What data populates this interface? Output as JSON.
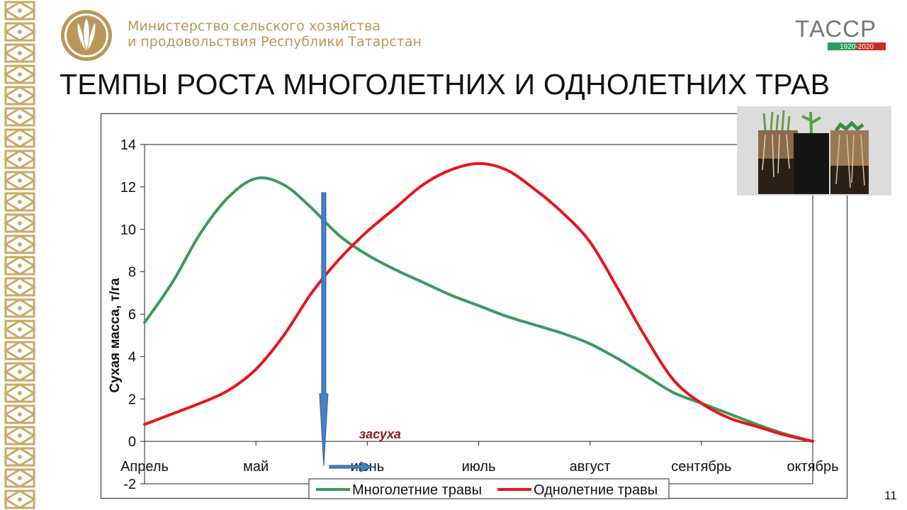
{
  "header": {
    "ministry_line1": "Министерство сельского хозяйства",
    "ministry_line2": "и продовольствия Республики Татарстан",
    "brand_text": "ТАССР",
    "brand_years": "1920-2020"
  },
  "title": "ТЕМПЫ РОСТА МНОГОЛЕТНИХ И ОДНОЛЕТНИХ ТРАВ",
  "slide_number": "11",
  "colors": {
    "perennial": "#3a9a5c",
    "annual": "#e8141b",
    "arrow": "#4a7fc4",
    "annotation": "#8b1a1a",
    "brand_gold": "#b9975b"
  },
  "chart_data": {
    "type": "line",
    "title": "",
    "xlabel": "",
    "ylabel": "Сухая масса, т/га",
    "ylim": [
      -2,
      14
    ],
    "yticks": [
      -2,
      0,
      2,
      4,
      6,
      8,
      10,
      12,
      14
    ],
    "categories": [
      "Апрель",
      "май",
      "июнь",
      "июль",
      "август",
      "сентябрь",
      "октябрь"
    ],
    "xlim": [
      0,
      6
    ],
    "grid": false,
    "legend_position": "bottom",
    "series": [
      {
        "name": "Многолетние травы",
        "x": [
          0,
          0.25,
          0.5,
          0.75,
          1.0,
          1.25,
          1.5,
          1.75,
          2.0,
          2.25,
          2.5,
          2.75,
          3.0,
          3.25,
          3.5,
          3.75,
          4.0,
          4.25,
          4.5,
          4.75,
          5.0,
          5.25,
          5.5,
          5.75,
          6.0
        ],
        "y": [
          5.6,
          7.5,
          9.8,
          11.5,
          12.4,
          12.1,
          11.0,
          9.7,
          8.8,
          8.1,
          7.5,
          6.9,
          6.4,
          5.9,
          5.5,
          5.1,
          4.6,
          3.9,
          3.1,
          2.3,
          1.8,
          1.3,
          0.8,
          0.35,
          0.0
        ]
      },
      {
        "name": "Однолетние травы",
        "x": [
          0,
          0.25,
          0.5,
          0.75,
          1.0,
          1.25,
          1.5,
          1.75,
          2.0,
          2.25,
          2.5,
          2.75,
          3.0,
          3.25,
          3.5,
          3.75,
          4.0,
          4.25,
          4.5,
          4.75,
          5.0,
          5.25,
          5.5,
          5.75,
          6.0
        ],
        "y": [
          0.8,
          1.3,
          1.8,
          2.4,
          3.4,
          5.0,
          7.0,
          8.6,
          9.9,
          11.0,
          12.1,
          12.8,
          13.1,
          12.8,
          11.9,
          10.8,
          9.4,
          7.2,
          4.9,
          2.9,
          1.8,
          1.1,
          0.7,
          0.3,
          0.0
        ]
      }
    ],
    "annotations": [
      {
        "text": "засуха",
        "x": 1.8
      }
    ]
  }
}
